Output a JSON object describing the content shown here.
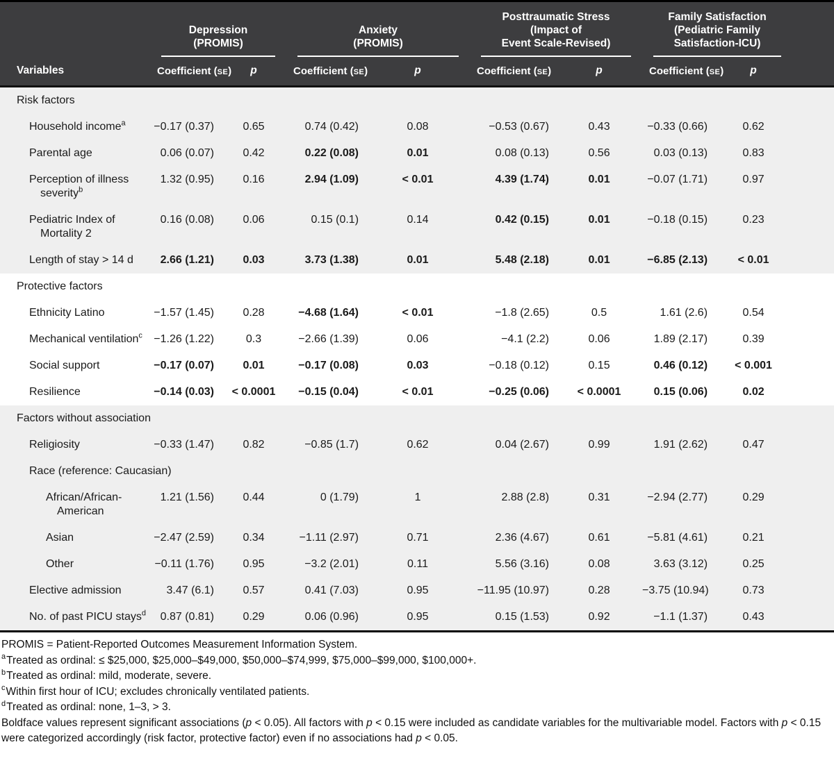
{
  "colors": {
    "header_bg": "#3d3d3f",
    "shaded_row_bg": "#efefef",
    "white_row_bg": "#ffffff",
    "text": "#1a1a1a",
    "header_text": "#ffffff"
  },
  "header": {
    "variables_label": "Variables",
    "coef_prefix": "Coefficient (",
    "coef_se": "SE",
    "coef_suffix": ")",
    "p_label": "p",
    "groups": [
      {
        "lines": [
          "Depression",
          "(PROMIS)"
        ]
      },
      {
        "lines": [
          "Anxiety",
          "(PROMIS)"
        ]
      },
      {
        "lines": [
          "Posttraumatic Stress",
          "(Impact of",
          "Event Scale-Revised)"
        ]
      },
      {
        "lines": [
          "Family Satisfaction",
          "(Pediatric Family",
          "Satisfaction-ICU)"
        ]
      }
    ]
  },
  "sections": [
    {
      "label": "Risk factors",
      "shaded": true,
      "rows": [
        {
          "label": "Household income",
          "sup": "a",
          "indent": 1,
          "cells": [
            "−0.17 (0.37)",
            "0.65",
            "0.74 (0.42)",
            "0.08",
            "−0.53 (0.67)",
            "0.43",
            "−0.33 (0.66)",
            "0.62"
          ],
          "bold": []
        },
        {
          "label": "Parental age",
          "indent": 1,
          "cells": [
            "0.06 (0.07)",
            "0.42",
            "0.22 (0.08)",
            "0.01",
            "0.08 (0.13)",
            "0.56",
            "0.03 (0.13)",
            "0.83"
          ],
          "bold": [
            2,
            3
          ]
        },
        {
          "label": "Perception of illness severity",
          "sup": "b",
          "indent": 1,
          "cells": [
            "1.32 (0.95)",
            "0.16",
            "2.94 (1.09)",
            "< 0.01",
            "4.39 (1.74)",
            "0.01",
            "−0.07 (1.71)",
            "0.97"
          ],
          "bold": [
            2,
            3,
            4,
            5
          ]
        },
        {
          "label": "Pediatric Index of Mortality 2",
          "indent": 1,
          "cells": [
            "0.16 (0.08)",
            "0.06",
            "0.15 (0.1)",
            "0.14",
            "0.42 (0.15)",
            "0.01",
            "−0.18 (0.15)",
            "0.23"
          ],
          "bold": [
            4,
            5
          ]
        },
        {
          "label": "Length of stay > 14 d",
          "indent": 1,
          "cells": [
            "2.66 (1.21)",
            "0.03",
            "3.73 (1.38)",
            "0.01",
            "5.48 (2.18)",
            "0.01",
            "−6.85 (2.13)",
            "< 0.01"
          ],
          "bold": [
            0,
            1,
            2,
            3,
            4,
            5,
            6,
            7
          ]
        }
      ]
    },
    {
      "label": "Protective factors",
      "shaded": false,
      "rows": [
        {
          "label": "Ethnicity Latino",
          "indent": 1,
          "cells": [
            "−1.57 (1.45)",
            "0.28",
            "−4.68 (1.64)",
            "< 0.01",
            "−1.8 (2.65)",
            "0.5",
            "1.61 (2.6)",
            "0.54"
          ],
          "bold": [
            2,
            3
          ]
        },
        {
          "label": "Mechanical ventilation",
          "sup": "c",
          "indent": 1,
          "cells": [
            "−1.26 (1.22)",
            "0.3",
            "−2.66 (1.39)",
            "0.06",
            "−4.1 (2.2)",
            "0.06",
            "1.89 (2.17)",
            "0.39"
          ],
          "bold": []
        },
        {
          "label": "Social support",
          "indent": 1,
          "cells": [
            "−0.17 (0.07)",
            "0.01",
            "−0.17 (0.08)",
            "0.03",
            "−0.18 (0.12)",
            "0.15",
            "0.46 (0.12)",
            "< 0.001"
          ],
          "bold": [
            0,
            1,
            2,
            3,
            6,
            7
          ]
        },
        {
          "label": "Resilience",
          "indent": 1,
          "cells": [
            "−0.14 (0.03)",
            "< 0.0001",
            "−0.15 (0.04)",
            "< 0.01",
            "−0.25 (0.06)",
            "< 0.0001",
            "0.15 (0.06)",
            "0.02"
          ],
          "bold": [
            0,
            1,
            2,
            3,
            4,
            5,
            6,
            7
          ]
        }
      ]
    },
    {
      "label": "Factors without association",
      "shaded": true,
      "rows": [
        {
          "label": "Religiosity",
          "indent": 1,
          "cells": [
            "−0.33 (1.47)",
            "0.82",
            "−0.85 (1.7)",
            "0.62",
            "0.04 (2.67)",
            "0.99",
            "1.91 (2.62)",
            "0.47"
          ],
          "bold": []
        },
        {
          "label": "Race (reference: Caucasian)",
          "indent": 1,
          "subheader": true
        },
        {
          "label": "African/African-American",
          "indent": 2,
          "cells": [
            "1.21 (1.56)",
            "0.44",
            "0 (1.79)",
            "1",
            "2.88 (2.8)",
            "0.31",
            "−2.94 (2.77)",
            "0.29"
          ],
          "bold": []
        },
        {
          "label": "Asian",
          "indent": 2,
          "cells": [
            "−2.47 (2.59)",
            "0.34",
            "−1.11 (2.97)",
            "0.71",
            "2.36 (4.67)",
            "0.61",
            "−5.81 (4.61)",
            "0.21"
          ],
          "bold": []
        },
        {
          "label": "Other",
          "indent": 2,
          "cells": [
            "−0.11 (1.76)",
            "0.95",
            "−3.2 (2.01)",
            "0.11",
            "5.56 (3.16)",
            "0.08",
            "3.63 (3.12)",
            "0.25"
          ],
          "bold": []
        },
        {
          "label": "Elective admission",
          "indent": 1,
          "cells": [
            "3.47 (6.1)",
            "0.57",
            "0.41 (7.03)",
            "0.95",
            "−11.95 (10.97)",
            "0.28",
            "−3.75 (10.94)",
            "0.73"
          ],
          "bold": []
        },
        {
          "label": "No. of past PICU stays",
          "sup": "d",
          "indent": 1,
          "cells": [
            "0.87 (0.81)",
            "0.29",
            "0.06 (0.96)",
            "0.95",
            "0.15 (1.53)",
            "0.92",
            "−1.1 (1.37)",
            "0.43"
          ],
          "bold": []
        }
      ]
    }
  ],
  "footnotes": [
    [
      {
        "t": "PROMIS = Patient-Reported Outcomes Measurement Information System."
      }
    ],
    [
      {
        "sup": "a"
      },
      {
        "t": "Treated as ordinal: ≤ $25,000, $25,000–$49,000, $50,000–$74,999, $75,000–$99,000, $100,000+."
      }
    ],
    [
      {
        "sup": "b"
      },
      {
        "t": "Treated as ordinal: mild, moderate, severe."
      }
    ],
    [
      {
        "sup": "c"
      },
      {
        "t": "Within first hour of ICU; excludes chronically ventilated patients."
      }
    ],
    [
      {
        "sup": "d"
      },
      {
        "t": "Treated as ordinal: none, 1–3, > 3."
      }
    ],
    [
      {
        "t": "Boldface values represent significant associations ("
      },
      {
        "t": "p",
        "i": true
      },
      {
        "t": " < 0.05). All factors with "
      },
      {
        "t": "p",
        "i": true
      },
      {
        "t": " < 0.15 were included as candidate variables for the multivariable model. Factors with "
      },
      {
        "t": "p",
        "i": true
      },
      {
        "t": " < 0.15 were categorized accordingly (risk factor, protective factor) even if no associations had "
      },
      {
        "t": "p",
        "i": true
      },
      {
        "t": " < 0.05."
      }
    ]
  ]
}
